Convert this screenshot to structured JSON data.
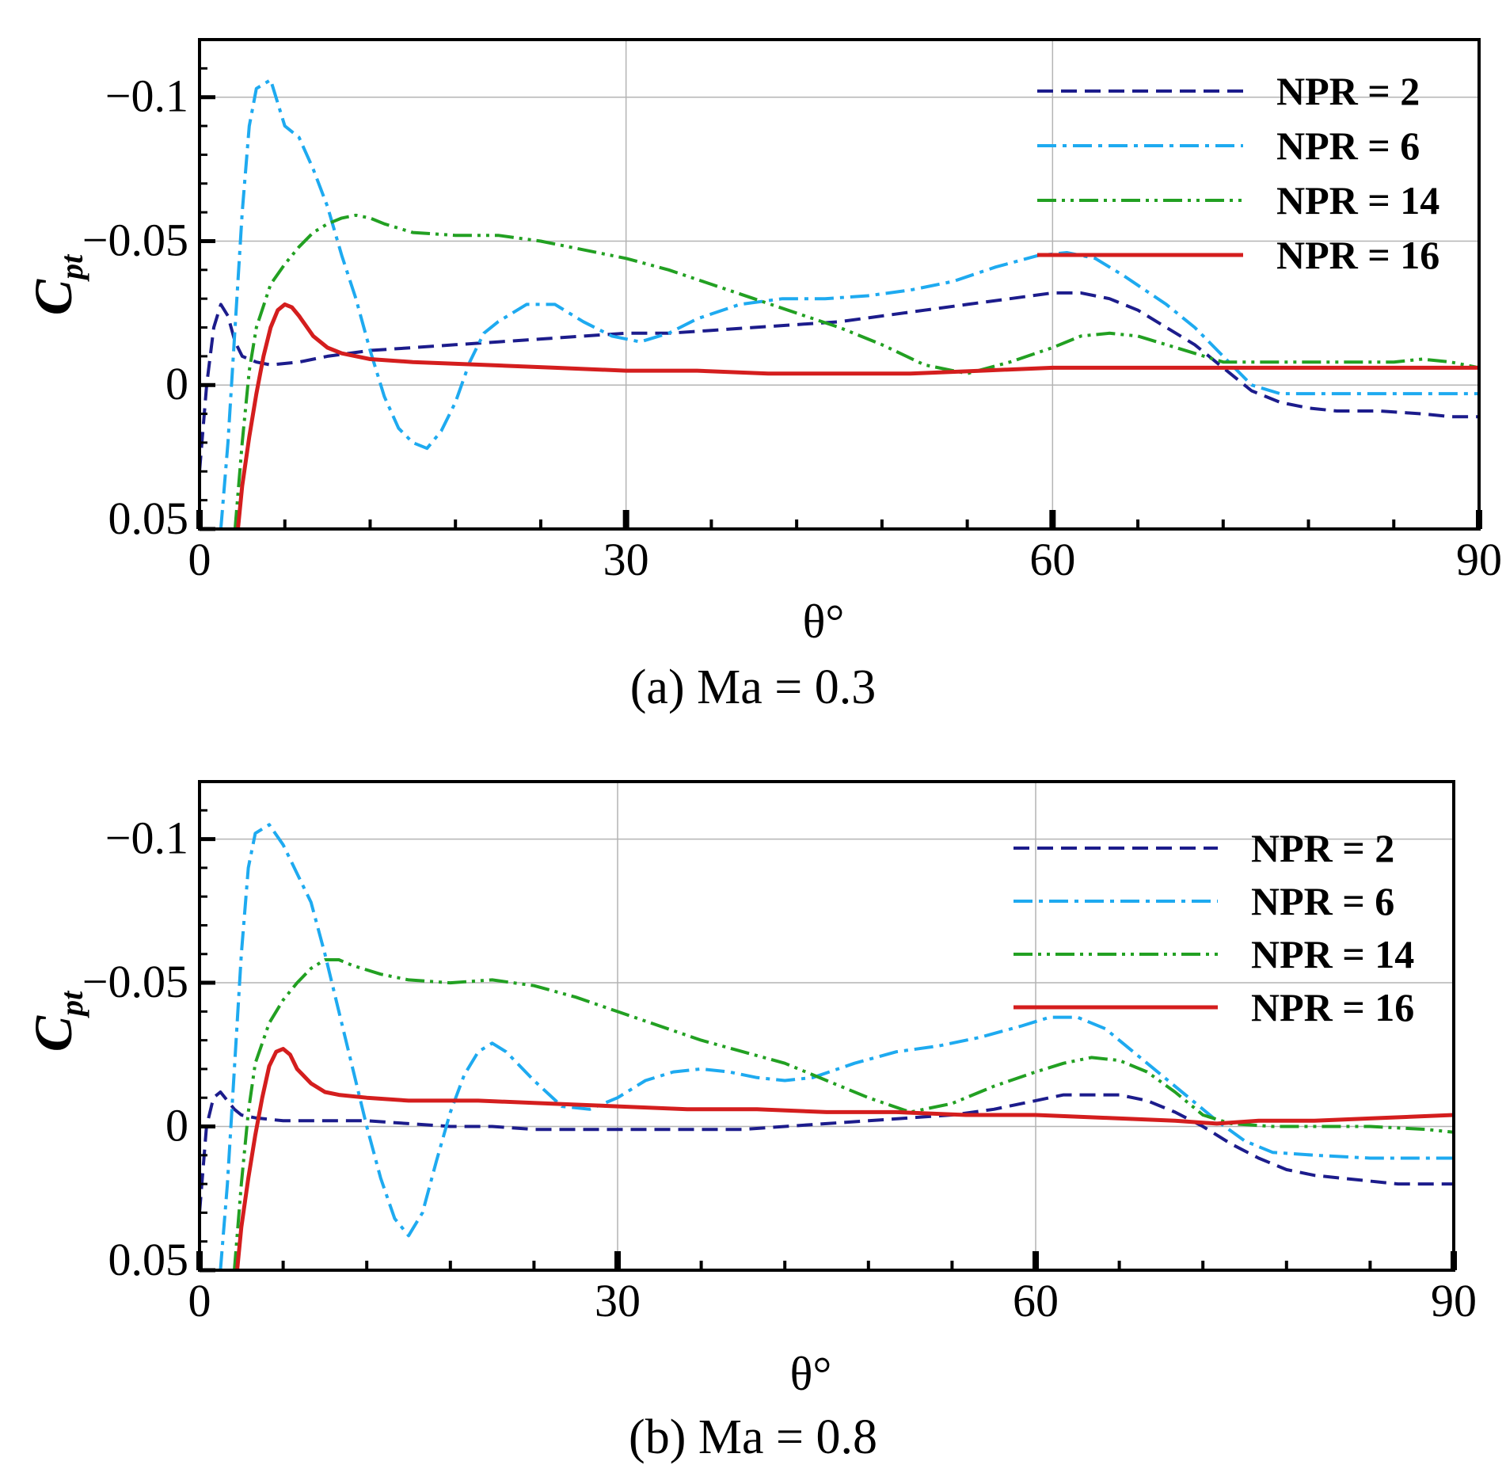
{
  "figure": {
    "panels": [
      {
        "caption": "(a) Ma = 0.3"
      },
      {
        "caption": "(b) Ma = 0.8"
      }
    ]
  },
  "chart_data": [
    {
      "type": "line",
      "title": "(a) Ma = 0.3",
      "xlabel": "θ°",
      "ylabel": "C",
      "ylabel_sub": "pt",
      "xlim": [
        0,
        90
      ],
      "ylim": [
        0.05,
        -0.12
      ],
      "y_inverted": true,
      "xticks": [
        0,
        30,
        60,
        90
      ],
      "xtick_labels": [
        "0",
        "30",
        "60",
        "90"
      ],
      "yticks": [
        -0.1,
        -0.05,
        0,
        0.05
      ],
      "ytick_labels": [
        "−0.1",
        "−0.05",
        "0",
        "0.05"
      ],
      "grid": true,
      "legend_position": "top-right",
      "series": [
        {
          "name": "NPR = 2",
          "color": "#1c1c8c",
          "dash": "dashed",
          "x": [
            0,
            0.5,
            1,
            1.5,
            2,
            2.5,
            3,
            4,
            5,
            7,
            9,
            12,
            15,
            18,
            21,
            24,
            27,
            30,
            33,
            36,
            39,
            42,
            45,
            48,
            51,
            54,
            57,
            60,
            62,
            64,
            66,
            68,
            70,
            72,
            74,
            76,
            78,
            80,
            83,
            86,
            88,
            90
          ],
          "y": [
            0.03,
            0.0,
            -0.02,
            -0.028,
            -0.024,
            -0.015,
            -0.01,
            -0.008,
            -0.007,
            -0.008,
            -0.01,
            -0.012,
            -0.013,
            -0.014,
            -0.015,
            -0.016,
            -0.017,
            -0.018,
            -0.018,
            -0.019,
            -0.02,
            -0.021,
            -0.022,
            -0.024,
            -0.026,
            -0.028,
            -0.03,
            -0.032,
            -0.032,
            -0.03,
            -0.026,
            -0.02,
            -0.014,
            -0.006,
            0.002,
            0.006,
            0.008,
            0.009,
            0.009,
            0.01,
            0.011,
            0.011
          ]
        },
        {
          "name": "NPR = 6",
          "color": "#1eaaf0",
          "dash": "dashdot",
          "x": [
            1.5,
            2,
            2.5,
            3,
            3.5,
            4,
            5,
            6,
            7,
            8,
            9,
            10,
            11,
            12,
            13,
            14,
            15,
            16,
            17,
            18,
            19,
            20,
            21,
            23,
            25,
            27,
            29,
            31,
            33,
            35,
            38,
            41,
            44,
            47,
            50,
            53,
            56,
            59,
            61,
            63,
            65,
            68,
            70,
            72,
            74,
            76,
            78,
            80,
            83,
            86,
            90
          ],
          "y": [
            0.05,
            0.02,
            -0.02,
            -0.06,
            -0.09,
            -0.103,
            -0.106,
            -0.09,
            -0.086,
            -0.075,
            -0.062,
            -0.045,
            -0.03,
            -0.012,
            0.004,
            0.015,
            0.02,
            0.022,
            0.016,
            0.006,
            -0.008,
            -0.018,
            -0.022,
            -0.028,
            -0.028,
            -0.022,
            -0.017,
            -0.015,
            -0.018,
            -0.023,
            -0.028,
            -0.03,
            -0.03,
            -0.031,
            -0.033,
            -0.036,
            -0.041,
            -0.045,
            -0.046,
            -0.044,
            -0.038,
            -0.028,
            -0.02,
            -0.01,
            0.0,
            0.003,
            0.003,
            0.003,
            0.003,
            0.003,
            0.003
          ]
        },
        {
          "name": "NPR = 14",
          "color": "#22a022",
          "dash": "dashdotdot",
          "x": [
            2.5,
            3,
            3.5,
            4,
            5,
            6,
            7,
            8,
            9,
            10,
            11,
            12,
            13,
            15,
            18,
            21,
            24,
            27,
            30,
            33,
            36,
            39,
            42,
            45,
            48,
            51,
            54,
            57,
            60,
            62,
            64,
            66,
            68,
            70,
            72,
            74,
            76,
            80,
            84,
            86,
            88,
            90
          ],
          "y": [
            0.05,
            0.02,
            -0.005,
            -0.02,
            -0.035,
            -0.042,
            -0.048,
            -0.053,
            -0.056,
            -0.058,
            -0.059,
            -0.058,
            -0.056,
            -0.053,
            -0.052,
            -0.052,
            -0.05,
            -0.047,
            -0.044,
            -0.04,
            -0.035,
            -0.03,
            -0.025,
            -0.02,
            -0.014,
            -0.007,
            -0.004,
            -0.008,
            -0.013,
            -0.017,
            -0.018,
            -0.017,
            -0.014,
            -0.011,
            -0.008,
            -0.008,
            -0.008,
            -0.008,
            -0.008,
            -0.009,
            -0.008,
            -0.006
          ]
        },
        {
          "name": "NPR = 16",
          "color": "#d41e1e",
          "dash": "solid",
          "x": [
            2.7,
            3,
            3.5,
            4,
            4.5,
            5,
            5.5,
            6,
            6.5,
            7,
            8,
            9,
            10,
            12,
            15,
            20,
            25,
            30,
            35,
            40,
            45,
            50,
            55,
            60,
            65,
            70,
            75,
            80,
            85,
            90
          ],
          "y": [
            0.05,
            0.035,
            0.018,
            0.003,
            -0.01,
            -0.02,
            -0.026,
            -0.028,
            -0.027,
            -0.024,
            -0.017,
            -0.013,
            -0.011,
            -0.009,
            -0.008,
            -0.007,
            -0.006,
            -0.005,
            -0.005,
            -0.004,
            -0.004,
            -0.004,
            -0.005,
            -0.006,
            -0.006,
            -0.006,
            -0.006,
            -0.006,
            -0.006,
            -0.006
          ]
        }
      ]
    },
    {
      "type": "line",
      "title": "(b) Ma = 0.8",
      "xlabel": "θ°",
      "ylabel": "C",
      "ylabel_sub": "pt",
      "xlim": [
        0,
        90
      ],
      "ylim": [
        0.05,
        -0.12
      ],
      "y_inverted": true,
      "xticks": [
        0,
        30,
        60,
        90
      ],
      "xtick_labels": [
        "0",
        "30",
        "60",
        "90"
      ],
      "yticks": [
        -0.1,
        -0.05,
        0,
        0.05
      ],
      "ytick_labels": [
        "−0.1",
        "−0.05",
        "0",
        "0.05"
      ],
      "grid": true,
      "legend_position": "top-right",
      "series": [
        {
          "name": "NPR = 2",
          "color": "#1c1c8c",
          "dash": "dashed",
          "x": [
            0,
            0.5,
            1,
            1.5,
            2,
            2.5,
            3,
            4,
            6,
            9,
            12,
            15,
            18,
            21,
            24,
            27,
            30,
            33,
            36,
            39,
            42,
            45,
            48,
            51,
            54,
            57,
            60,
            62,
            64,
            66,
            68,
            70,
            72,
            74,
            76,
            78,
            80,
            82,
            84,
            86,
            88,
            90
          ],
          "y": [
            0.03,
            0.0,
            -0.01,
            -0.012,
            -0.009,
            -0.006,
            -0.004,
            -0.003,
            -0.002,
            -0.002,
            -0.002,
            -0.001,
            0.0,
            0.0,
            0.001,
            0.001,
            0.001,
            0.001,
            0.001,
            0.001,
            0.0,
            -0.001,
            -0.002,
            -0.003,
            -0.004,
            -0.006,
            -0.009,
            -0.011,
            -0.011,
            -0.011,
            -0.009,
            -0.005,
            0.0,
            0.006,
            0.011,
            0.015,
            0.017,
            0.018,
            0.019,
            0.02,
            0.02,
            0.02
          ]
        },
        {
          "name": "NPR = 6",
          "color": "#1eaaf0",
          "dash": "dashdot",
          "x": [
            1.5,
            2,
            2.5,
            3,
            3.5,
            4,
            5,
            6,
            7,
            8,
            9,
            10,
            11,
            12,
            13,
            14,
            15,
            16,
            17,
            18,
            19,
            20,
            21,
            22,
            24,
            26,
            28,
            30,
            32,
            34,
            36,
            38,
            40,
            42,
            44,
            47,
            50,
            53,
            56,
            59,
            61,
            63,
            65,
            67,
            69,
            71,
            73,
            75,
            77,
            80,
            84,
            87,
            90
          ],
          "y": [
            0.05,
            0.02,
            -0.02,
            -0.06,
            -0.09,
            -0.102,
            -0.105,
            -0.098,
            -0.088,
            -0.078,
            -0.06,
            -0.04,
            -0.02,
            0.0,
            0.018,
            0.032,
            0.038,
            0.03,
            0.012,
            -0.005,
            -0.018,
            -0.026,
            -0.029,
            -0.026,
            -0.016,
            -0.007,
            -0.006,
            -0.01,
            -0.016,
            -0.019,
            -0.02,
            -0.019,
            -0.017,
            -0.016,
            -0.017,
            -0.022,
            -0.026,
            -0.028,
            -0.031,
            -0.035,
            -0.038,
            -0.038,
            -0.034,
            -0.026,
            -0.018,
            -0.01,
            -0.002,
            0.005,
            0.009,
            0.01,
            0.011,
            0.011,
            0.011
          ]
        },
        {
          "name": "NPR = 14",
          "color": "#22a022",
          "dash": "dashdotdot",
          "x": [
            2.5,
            3,
            3.5,
            4,
            5,
            6,
            7,
            8,
            9,
            10,
            11,
            13,
            15,
            18,
            21,
            24,
            27,
            30,
            33,
            36,
            39,
            42,
            45,
            48,
            51,
            54,
            57,
            60,
            62,
            64,
            66,
            68,
            70,
            72,
            74,
            77,
            80,
            84,
            88,
            90
          ],
          "y": [
            0.05,
            0.02,
            -0.005,
            -0.022,
            -0.036,
            -0.044,
            -0.05,
            -0.055,
            -0.058,
            -0.058,
            -0.056,
            -0.053,
            -0.051,
            -0.05,
            -0.051,
            -0.049,
            -0.045,
            -0.04,
            -0.035,
            -0.03,
            -0.026,
            -0.022,
            -0.016,
            -0.01,
            -0.005,
            -0.008,
            -0.014,
            -0.019,
            -0.022,
            -0.024,
            -0.023,
            -0.019,
            -0.012,
            -0.004,
            -0.001,
            0.0,
            0.0,
            0.0,
            0.001,
            0.002
          ]
        },
        {
          "name": "NPR = 16",
          "color": "#d41e1e",
          "dash": "solid",
          "x": [
            2.7,
            3,
            3.5,
            4,
            4.5,
            5,
            5.5,
            6,
            6.5,
            7,
            8,
            9,
            10,
            12,
            15,
            20,
            25,
            30,
            35,
            40,
            45,
            50,
            55,
            60,
            65,
            70,
            73,
            76,
            80,
            85,
            90
          ],
          "y": [
            0.05,
            0.035,
            0.018,
            0.003,
            -0.01,
            -0.021,
            -0.026,
            -0.027,
            -0.025,
            -0.02,
            -0.015,
            -0.012,
            -0.011,
            -0.01,
            -0.009,
            -0.009,
            -0.008,
            -0.007,
            -0.006,
            -0.006,
            -0.005,
            -0.005,
            -0.004,
            -0.004,
            -0.003,
            -0.002,
            -0.001,
            -0.002,
            -0.002,
            -0.003,
            -0.004
          ]
        }
      ]
    }
  ]
}
